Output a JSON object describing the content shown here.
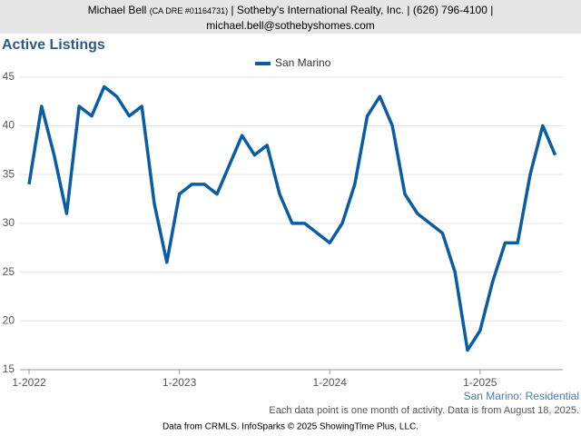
{
  "header": {
    "name": "Michael Bell",
    "license": "(CA DRE #01164731)",
    "company": "| Sotheby's International Realty, Inc. | (626) 796-4100 |",
    "email": "michael.bell@sothebyshomes.com"
  },
  "chart_data": {
    "type": "line",
    "title": "Active Listings",
    "categories": [
      "1-2022",
      null,
      null,
      null,
      null,
      null,
      null,
      null,
      null,
      null,
      null,
      null,
      "1-2023",
      null,
      null,
      null,
      null,
      null,
      null,
      null,
      null,
      null,
      null,
      null,
      "1-2024",
      null,
      null,
      null,
      null,
      null,
      null,
      null,
      null,
      null,
      null,
      null,
      "1-2025",
      null,
      null,
      null,
      null,
      null,
      null
    ],
    "series": [
      {
        "name": "San Marino",
        "color": "#0a5ca4",
        "values": [
          34,
          42,
          37,
          31,
          42,
          41,
          44,
          43,
          41,
          42,
          32,
          26,
          33,
          34,
          34,
          33,
          36,
          39,
          37,
          38,
          33,
          30,
          30,
          29,
          28,
          30,
          34,
          41,
          43,
          40,
          33,
          31,
          30,
          29,
          25,
          17,
          19,
          24,
          28,
          28,
          35,
          40,
          37
        ]
      }
    ],
    "ylim": [
      15,
      46
    ],
    "yticks": [
      15,
      20,
      25,
      30,
      35,
      40,
      45
    ],
    "grid": true,
    "annotation": "San Marino: Residential",
    "note": "Each data point is one month of activity. Data is from August 18, 2025."
  },
  "footer": "Data from CRMLS. InfoSparks © 2025 ShowingTime Plus, LLC."
}
